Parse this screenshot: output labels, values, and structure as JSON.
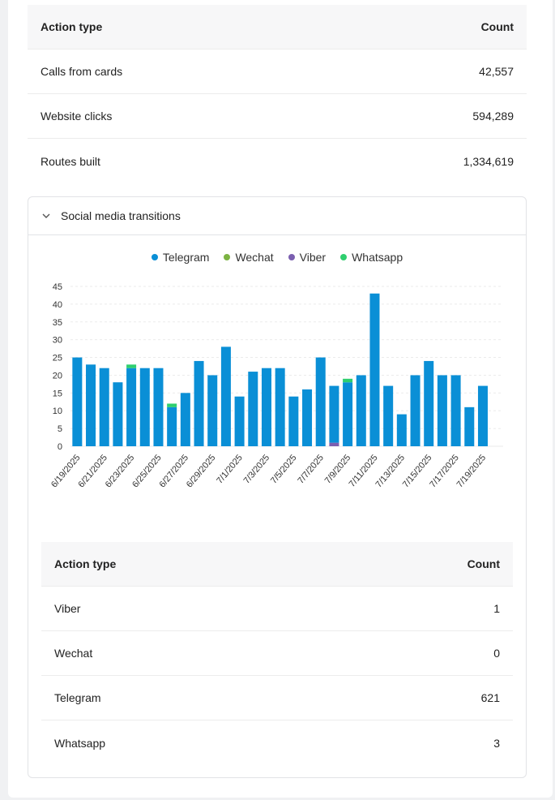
{
  "top_table": {
    "headers": {
      "action": "Action type",
      "count": "Count"
    },
    "rows": [
      {
        "action": "Calls from cards",
        "count": "42,557"
      },
      {
        "action": "Website clicks",
        "count": "594,289"
      },
      {
        "action": "Routes built",
        "count": "1,334,619"
      }
    ]
  },
  "panel": {
    "title": "Social media transitions",
    "icon": "chevron-down-icon"
  },
  "chart_data": {
    "type": "bar",
    "stacked": true,
    "categories": [
      "6/19/2025",
      "6/20/2025",
      "6/21/2025",
      "6/22/2025",
      "6/23/2025",
      "6/24/2025",
      "6/25/2025",
      "6/26/2025",
      "6/27/2025",
      "6/28/2025",
      "6/29/2025",
      "6/30/2025",
      "7/1/2025",
      "7/2/2025",
      "7/3/2025",
      "7/4/2025",
      "7/5/2025",
      "7/6/2025",
      "7/7/2025",
      "7/8/2025",
      "7/9/2025",
      "7/10/2025",
      "7/11/2025",
      "7/12/2025",
      "7/13/2025",
      "7/14/2025",
      "7/15/2025",
      "7/16/2025",
      "7/17/2025",
      "7/18/2025",
      "7/19/2025",
      "7/20/2025"
    ],
    "tick_labels": [
      "6/19/2025",
      "6/21/2025",
      "6/23/2025",
      "6/25/2025",
      "6/27/2025",
      "6/29/2025",
      "7/1/2025",
      "7/3/2025",
      "7/5/2025",
      "7/7/2025",
      "7/9/2025",
      "7/11/2025",
      "7/13/2025",
      "7/15/2025",
      "7/17/2025",
      "7/19/2025"
    ],
    "series": [
      {
        "name": "Telegram",
        "color": "#0a8fd6",
        "values": [
          25,
          23,
          22,
          18,
          22,
          22,
          22,
          11,
          15,
          24,
          20,
          28,
          14,
          21,
          22,
          22,
          14,
          16,
          25,
          16,
          18,
          20,
          43,
          17,
          9,
          20,
          24,
          20,
          20,
          11,
          17,
          0
        ]
      },
      {
        "name": "Wechat",
        "color": "#7cb342",
        "values": [
          0,
          0,
          0,
          0,
          0,
          0,
          0,
          0,
          0,
          0,
          0,
          0,
          0,
          0,
          0,
          0,
          0,
          0,
          0,
          0,
          0,
          0,
          0,
          0,
          0,
          0,
          0,
          0,
          0,
          0,
          0,
          0
        ]
      },
      {
        "name": "Viber",
        "color": "#7b5fb0",
        "values": [
          0,
          0,
          0,
          0,
          0,
          0,
          0,
          0,
          0,
          0,
          0,
          0,
          0,
          0,
          0,
          0,
          0,
          0,
          0,
          1,
          0,
          0,
          0,
          0,
          0,
          0,
          0,
          0,
          0,
          0,
          0,
          0
        ]
      },
      {
        "name": "Whatsapp",
        "color": "#2fcf6f",
        "values": [
          0,
          0,
          0,
          0,
          1,
          0,
          0,
          1,
          0,
          0,
          0,
          0,
          0,
          0,
          0,
          0,
          0,
          0,
          0,
          0,
          1,
          0,
          0,
          0,
          0,
          0,
          0,
          0,
          0,
          0,
          0,
          0
        ]
      }
    ],
    "yticks": [
      0,
      5,
      10,
      15,
      20,
      25,
      30,
      35,
      40,
      45
    ],
    "ylim": [
      0,
      45
    ],
    "grid": true,
    "legend_position": "top-center"
  },
  "bottom_table": {
    "headers": {
      "action": "Action type",
      "count": "Count"
    },
    "rows": [
      {
        "action": "Viber",
        "count": "1"
      },
      {
        "action": "Wechat",
        "count": "0"
      },
      {
        "action": "Telegram",
        "count": "621"
      },
      {
        "action": "Whatsapp",
        "count": "3"
      }
    ]
  }
}
